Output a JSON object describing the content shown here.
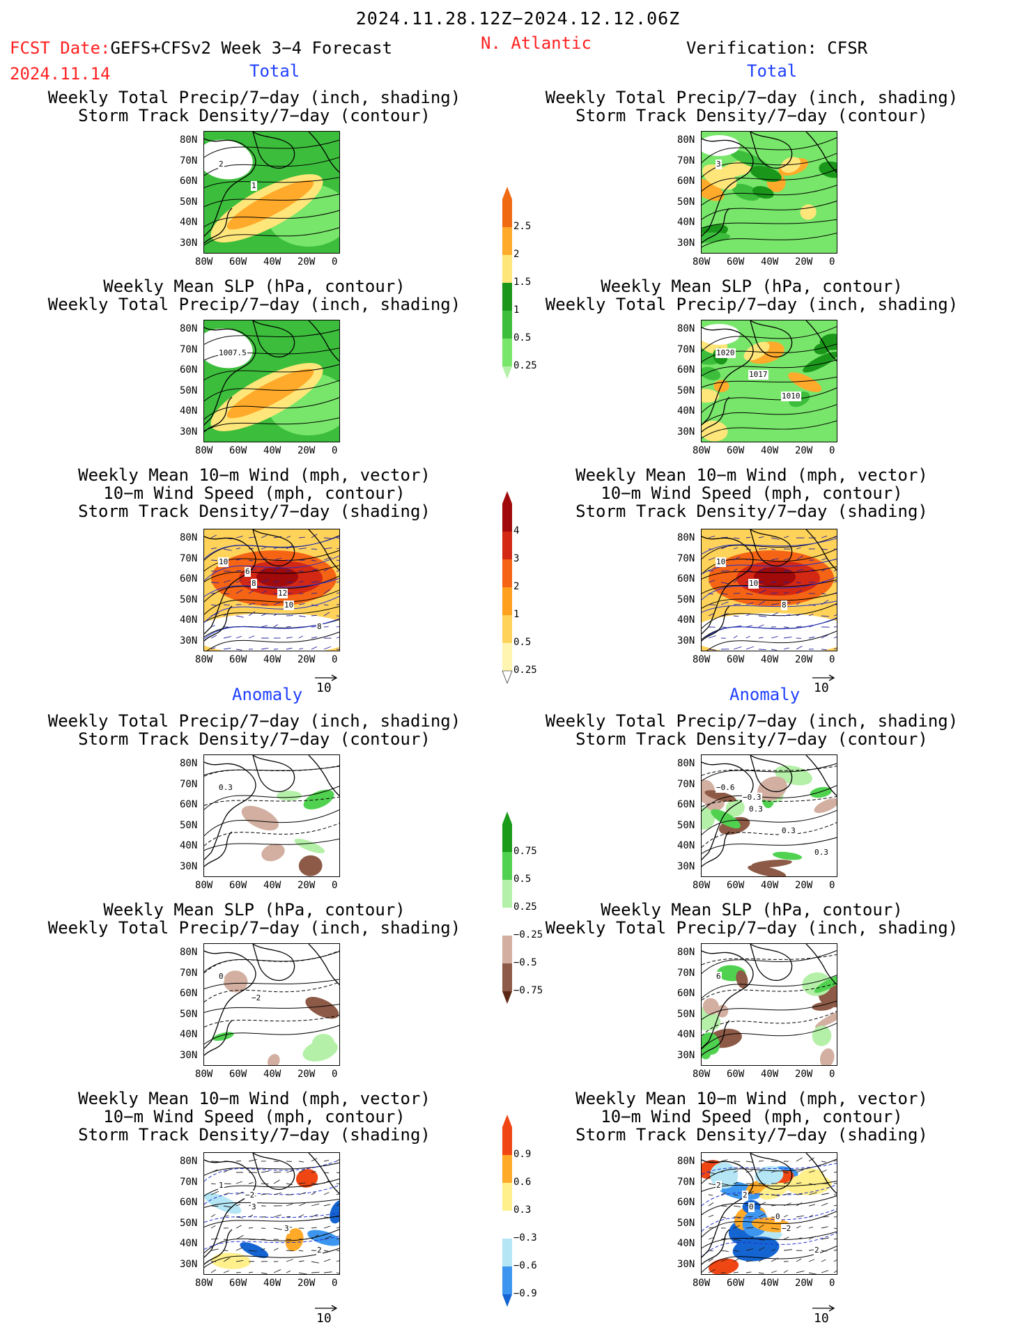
{
  "header": {
    "period": "2024.11.28.12Z−2024.12.12.06Z",
    "fcst_date_label": "FCST Date:",
    "fcst_source": "GEFS+CFSv2 Week 3−4 Forecast",
    "fcst_date": "2024.11.14",
    "region": "N. Atlantic",
    "verification": "Verification: CFSR"
  },
  "section_labels": {
    "total_left": "Total",
    "total_right": "Total",
    "anomaly_left": "Anomaly",
    "anomaly_right": "Anomaly"
  },
  "panel_titles": {
    "precip_storm": "Weekly Total Precip/7−day (inch, shading)\nStorm Track Density/7−day (contour)",
    "slp_precip": "Weekly Mean SLP (hPa, contour)\nWeekly Total Precip/7−day (inch, shading)",
    "wind_storm": "Weekly Mean 10−m Wind (mph, vector)\n10−m Wind Speed (mph, contour)\nStorm Track Density/7−day (shading)"
  },
  "axes": {
    "lat_ticks": [
      "80N",
      "70N",
      "60N",
      "50N",
      "40N",
      "30N"
    ],
    "lon_ticks": [
      "80W",
      "60W",
      "40W",
      "20W",
      "0"
    ]
  },
  "vector_ref": "10",
  "colorbars": {
    "precip_total": [
      "2.5",
      "2",
      "1.5",
      "1",
      "0.5",
      "0.25"
    ],
    "storm_total": [
      "4",
      "3",
      "2",
      "1",
      "0.5",
      "0.25"
    ],
    "precip_anom": [
      "0.75",
      "0.5",
      "0.25",
      "−0.25",
      "−0.5",
      "−0.75"
    ],
    "storm_anom": [
      "0.9",
      "0.6",
      "0.3",
      "−0.3",
      "−0.6",
      "−0.9"
    ]
  },
  "contour_labels": {
    "r1_left": [
      "2",
      "1"
    ],
    "r1_right": [
      "3"
    ],
    "r2_left": [
      "1007.5"
    ],
    "r2_right": [
      "1020",
      "1017",
      "1010"
    ],
    "r3_left": [
      "10",
      "8",
      "10",
      "8",
      "6",
      "12"
    ],
    "r3_right": [
      "10",
      "10",
      "8"
    ],
    "r4_left": [
      "0.3"
    ],
    "r4_right": [
      "−0.6",
      "0.3",
      "0.3",
      "0.3",
      "−0.3"
    ],
    "r5_left": [
      "0",
      "−2"
    ],
    "r5_right": [
      "6"
    ],
    "r6_left": [
      "1",
      "3",
      "3",
      "2",
      "−2"
    ],
    "r6_right": [
      "2",
      "0",
      "−2",
      "2",
      "2",
      "0"
    ]
  }
}
